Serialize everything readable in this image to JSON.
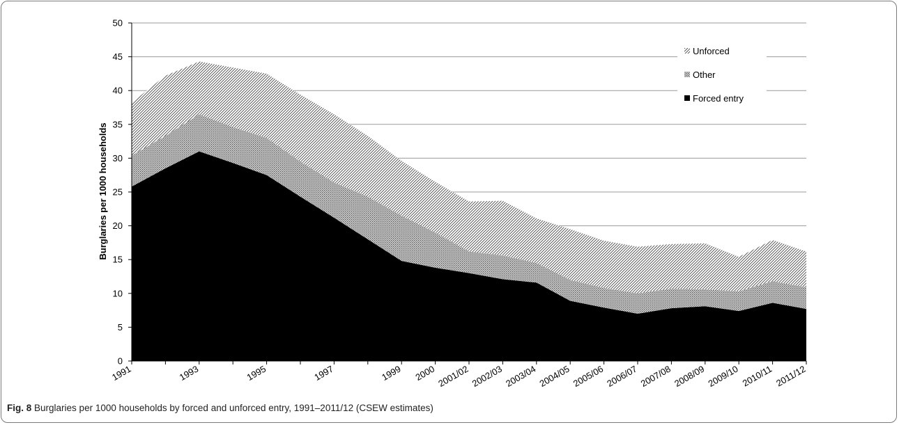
{
  "caption": {
    "label": "Fig. 8",
    "text": "Burglaries per 1000 households by forced and unforced entry, 1991–2011/12 (CSEW estimates)"
  },
  "chart_data": {
    "type": "area",
    "stacked": true,
    "title": "",
    "xlabel": "",
    "ylabel": "Burglaries per 1000 households",
    "ylim": [
      0,
      50
    ],
    "yticks": [
      0,
      5,
      10,
      15,
      20,
      25,
      30,
      35,
      40,
      45,
      50
    ],
    "grid": true,
    "legend_position": "top-right",
    "categories": [
      "1991",
      "1992",
      "1993",
      "1994",
      "1995",
      "1996",
      "1997",
      "1998",
      "1999",
      "2000",
      "2001/02",
      "2002/03",
      "2003/04",
      "2004/05",
      "2005/06",
      "2006/07",
      "2007/08",
      "2008/09",
      "2009/10",
      "2010/11",
      "2011/12"
    ],
    "category_labels": [
      "1991",
      "",
      "1993",
      "",
      "1995",
      "",
      "1997",
      "",
      "1999",
      "2000",
      "2001/02",
      "2002/03",
      "2003/04",
      "2004/05",
      "2005/06",
      "2006/07",
      "2007/08",
      "2008/09",
      "2009/10",
      "2010/11",
      "2011/12"
    ],
    "series": [
      {
        "name": "Forced entry",
        "fill": "solid",
        "color": "#000000",
        "values": [
          25.8,
          28.5,
          31.0,
          29.3,
          27.5,
          24.3,
          21.2,
          18.0,
          14.8,
          13.8,
          13.0,
          12.1,
          11.6,
          8.9,
          7.9,
          7.0,
          7.8,
          8.1,
          7.4,
          8.6,
          7.7
        ]
      },
      {
        "name": "Other",
        "fill": "dots",
        "color": "#888888",
        "values": [
          4.6,
          4.8,
          5.5,
          5.3,
          5.5,
          5.2,
          5.2,
          6.3,
          6.7,
          5.2,
          3.2,
          3.5,
          2.9,
          3.1,
          2.9,
          3.0,
          2.9,
          2.5,
          2.9,
          3.2,
          3.2
        ]
      },
      {
        "name": "Unforced",
        "fill": "hatch",
        "color": "#555555",
        "values": [
          7.8,
          8.9,
          7.8,
          8.8,
          9.5,
          9.9,
          10.1,
          9.0,
          8.1,
          7.5,
          7.4,
          8.1,
          6.6,
          7.5,
          7.0,
          6.9,
          6.6,
          6.8,
          5.1,
          6.1,
          5.3
        ]
      }
    ],
    "legend": [
      "Unforced",
      "Other",
      "Forced entry"
    ]
  }
}
